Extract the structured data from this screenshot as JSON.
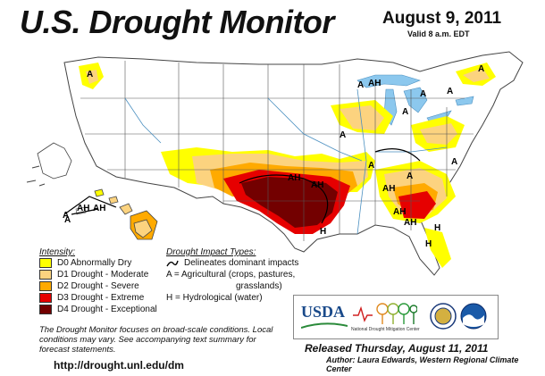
{
  "title": "U.S. Drought Monitor",
  "date": "August 9, 2011",
  "valid": "Valid 8 a.m. EDT",
  "legend": {
    "intensity_title": "Intensity:",
    "items": [
      {
        "label": "D0 Abnormally Dry",
        "color": "#ffff00"
      },
      {
        "label": "D1 Drought - Moderate",
        "color": "#fcd37f"
      },
      {
        "label": "D2 Drought - Severe",
        "color": "#ffaa00"
      },
      {
        "label": "D3 Drought - Extreme",
        "color": "#e60000"
      },
      {
        "label": "D4 Drought - Exceptional",
        "color": "#730000"
      }
    ],
    "impact_title": "Drought Impact Types:",
    "impact_items": [
      "Delineates dominant impacts",
      "A = Agricultural (crops, pastures,",
      "grasslands)",
      "H = Hydrological (water)"
    ]
  },
  "note": "The Drought Monitor focuses on broad-scale conditions. Local conditions may vary. See accompanying text summary for forecast statements.",
  "url": "http://drought.unl.edu/dm",
  "released": "Released Thursday, August 11, 2011",
  "author": "Author: Laura Edwards, Western Regional Climate Center",
  "logos": {
    "usda": "USDA",
    "ndmc_line1": "National",
    "ndmc_line2": "Drought Mitigation Center"
  },
  "map_labels": [
    {
      "text": "A",
      "id": "a1"
    },
    {
      "text": "AH",
      "id": "ah1"
    },
    {
      "text": "A",
      "id": "a2"
    },
    {
      "text": "A",
      "id": "a3"
    },
    {
      "text": "A",
      "id": "a4"
    },
    {
      "text": "A",
      "id": "a5"
    },
    {
      "text": "AH",
      "id": "ah2"
    },
    {
      "text": "A",
      "id": "a6"
    },
    {
      "text": "A",
      "id": "a7"
    },
    {
      "text": "A",
      "id": "a8"
    },
    {
      "text": "A",
      "id": "a9"
    },
    {
      "text": "AH",
      "id": "ah3"
    },
    {
      "text": "AH",
      "id": "ah4"
    },
    {
      "text": "A",
      "id": "a10"
    },
    {
      "text": "H",
      "id": "h1"
    },
    {
      "text": "H",
      "id": "h2"
    },
    {
      "text": "AH",
      "id": "ah5"
    },
    {
      "text": "A",
      "id": "a11"
    },
    {
      "text": "AH",
      "id": "ah6"
    },
    {
      "text": "AH",
      "id": "ah7"
    },
    {
      "text": "H",
      "id": "h3"
    },
    {
      "text": "AH",
      "id": "ah8"
    },
    {
      "text": "A",
      "id": "a12"
    }
  ],
  "colors": {
    "water": "#8cc8ee",
    "land": "#ffffff",
    "border": "#666666"
  }
}
